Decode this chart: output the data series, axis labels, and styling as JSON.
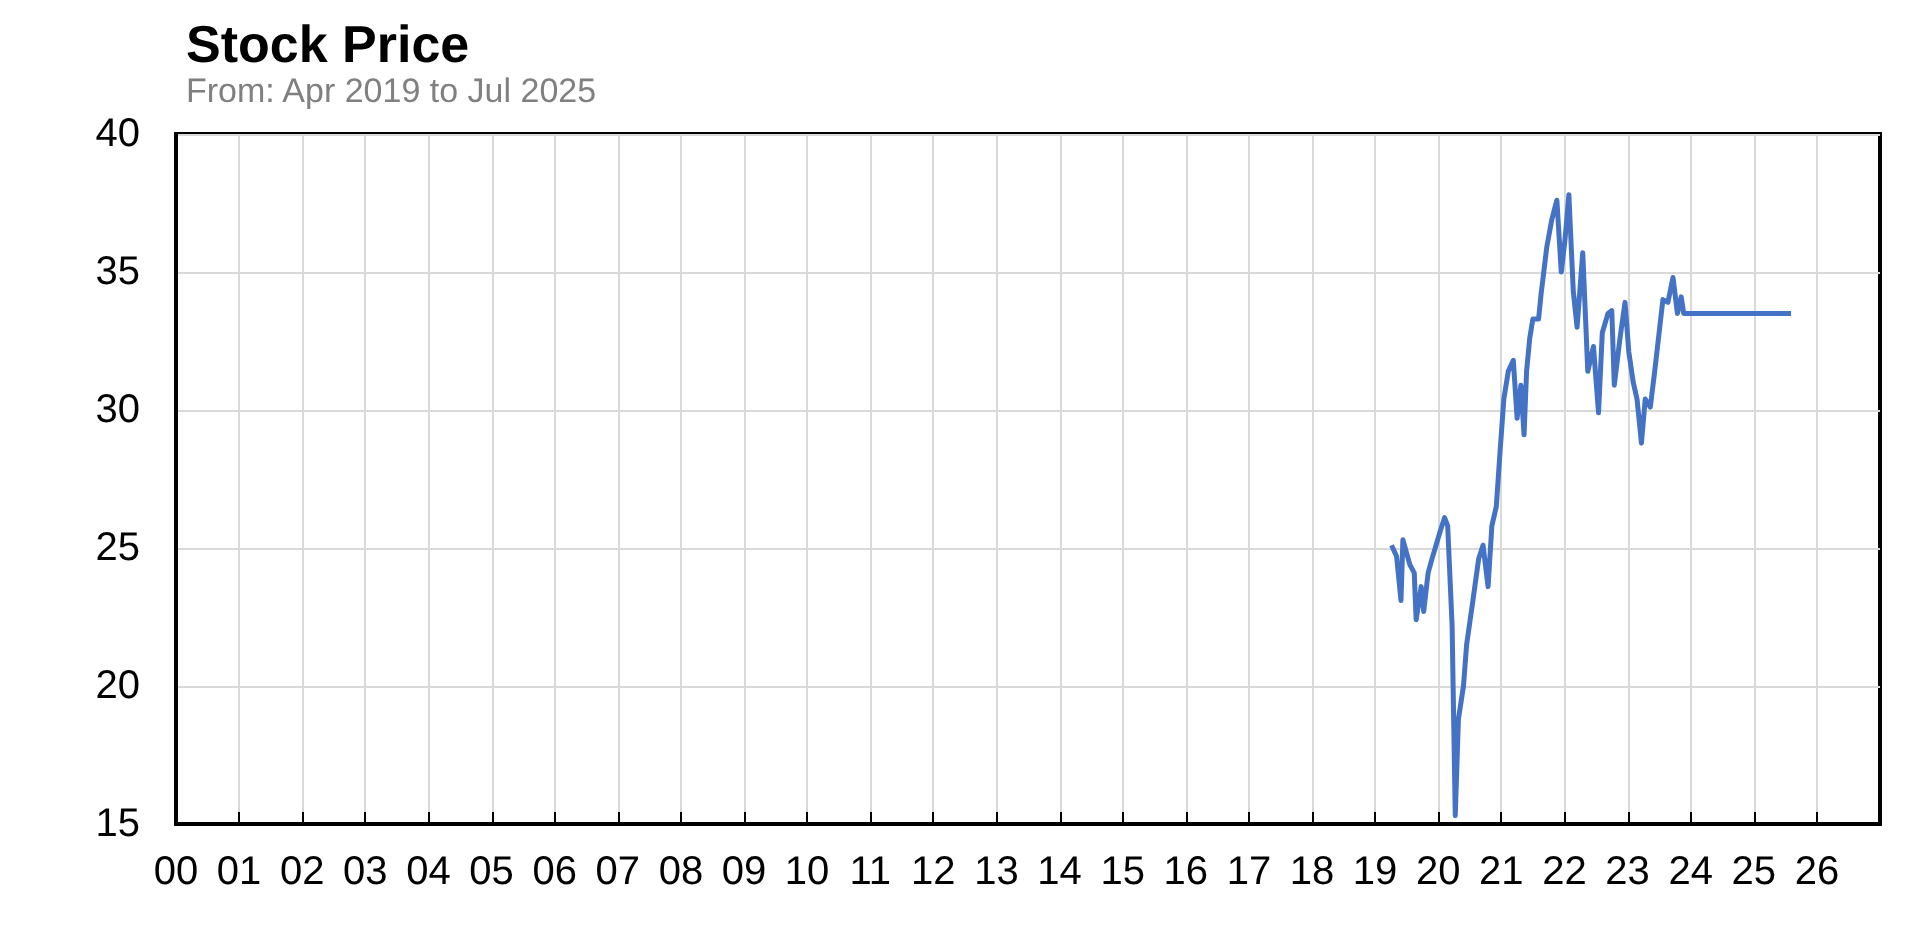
{
  "chart_data": {
    "type": "line",
    "title": "Stock Price",
    "subtitle": "From: Apr 2019 to Jul 2025",
    "x": [
      19.26,
      19.34,
      19.41,
      19.44,
      19.55,
      19.62,
      19.65,
      19.73,
      19.77,
      19.84,
      19.9,
      20.03,
      20.1,
      20.15,
      20.22,
      20.27,
      20.32,
      20.4,
      20.45,
      20.55,
      20.64,
      20.71,
      20.79,
      20.85,
      20.92,
      20.98,
      21.04,
      21.11,
      21.19,
      21.25,
      21.31,
      21.36,
      21.4,
      21.45,
      21.5,
      21.59,
      21.63,
      21.72,
      21.8,
      21.88,
      21.95,
      22.01,
      22.07,
      22.14,
      22.2,
      22.29,
      22.37,
      22.46,
      22.54,
      22.6,
      22.69,
      22.75,
      22.79,
      22.88,
      22.96,
      23.02,
      23.09,
      23.15,
      23.22,
      23.28,
      23.36,
      23.43,
      23.49,
      23.56,
      23.64,
      23.72,
      23.79,
      23.85,
      23.89,
      25.59
    ],
    "series": [
      {
        "color": "#4472c4",
        "values": [
          25.1,
          24.7,
          23.1,
          25.3,
          24.4,
          24.1,
          22.4,
          23.6,
          22.7,
          24.1,
          24.6,
          25.6,
          26.1,
          25.8,
          22.2,
          15.3,
          18.8,
          20.0,
          21.5,
          23.1,
          24.6,
          25.1,
          23.6,
          25.8,
          26.5,
          28.5,
          30.4,
          31.4,
          31.8,
          29.7,
          30.9,
          29.1,
          31.4,
          32.6,
          33.3,
          33.3,
          34.2,
          35.9,
          36.9,
          37.6,
          35.0,
          36.2,
          37.8,
          34.3,
          33.0,
          35.7,
          31.4,
          32.3,
          29.9,
          32.8,
          33.5,
          33.6,
          30.9,
          32.6,
          33.9,
          32.1,
          31.0,
          30.4,
          28.8,
          30.4,
          30.1,
          31.4,
          32.6,
          34.0,
          33.9,
          34.8,
          33.5,
          34.1,
          33.5,
          33.5
        ]
      }
    ],
    "xlim": [
      0,
      27
    ],
    "xticks": [
      {
        "value": 0,
        "label": "00"
      },
      {
        "value": 1,
        "label": "01"
      },
      {
        "value": 2,
        "label": "02"
      },
      {
        "value": 3,
        "label": "03"
      },
      {
        "value": 4,
        "label": "04"
      },
      {
        "value": 5,
        "label": "05"
      },
      {
        "value": 6,
        "label": "06"
      },
      {
        "value": 7,
        "label": "07"
      },
      {
        "value": 8,
        "label": "08"
      },
      {
        "value": 9,
        "label": "09"
      },
      10,
      11,
      12,
      13,
      14,
      15,
      16,
      17,
      18,
      19,
      20,
      21,
      22,
      23,
      24,
      25,
      26
    ],
    "ylim": [
      15,
      40
    ],
    "yticks": [
      15,
      20,
      25,
      30,
      35,
      40
    ],
    "grid": true,
    "marker": "none",
    "line_style": "solid"
  }
}
